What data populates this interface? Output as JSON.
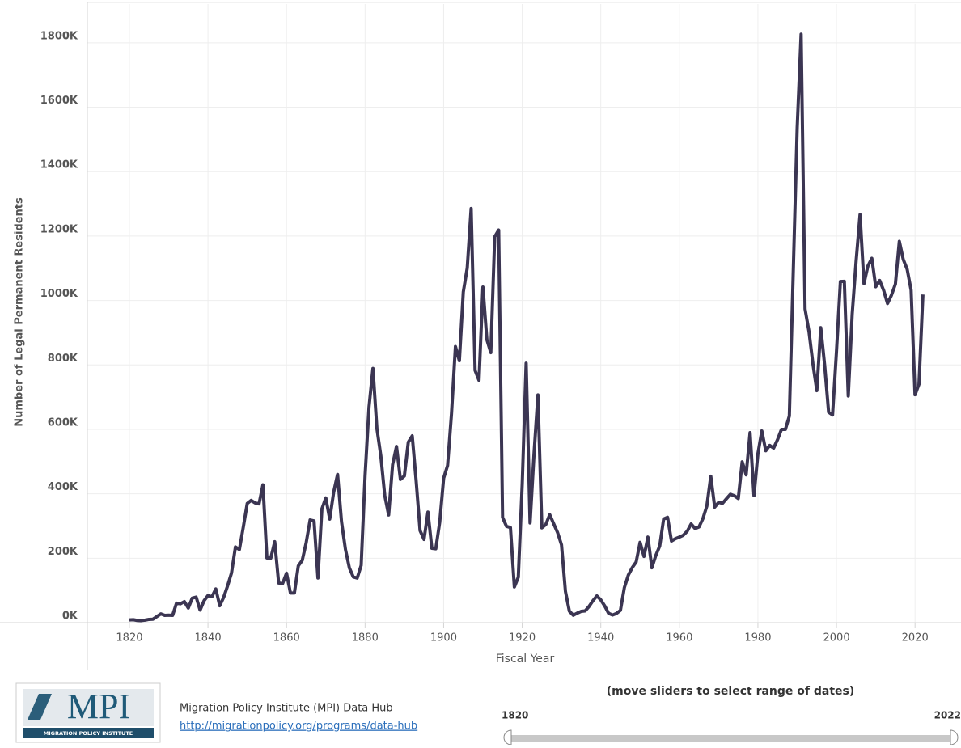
{
  "chart_data": {
    "type": "line",
    "y_label": "Number of Legal Permanent Residents",
    "x_label": "Fiscal Year",
    "color": "#3b3552",
    "grid": true,
    "xlim": [
      1809.3,
      2031.7
    ],
    "xticks": [
      1820,
      1840,
      1860,
      1880,
      1900,
      1920,
      1940,
      1960,
      1980,
      2000,
      2020
    ],
    "ylim": [
      0,
      1920000
    ],
    "yticks": [
      {
        "value": 0,
        "label": "0K"
      },
      {
        "value": 200000,
        "label": "200K"
      },
      {
        "value": 400000,
        "label": "400K"
      },
      {
        "value": 600000,
        "label": "600K"
      },
      {
        "value": 800000,
        "label": "800K"
      },
      {
        "value": 1000000,
        "label": "1000K"
      },
      {
        "value": 1200000,
        "label": "1200K"
      },
      {
        "value": 1400000,
        "label": "1400K"
      },
      {
        "value": 1600000,
        "label": "1600K"
      },
      {
        "value": 1800000,
        "label": "1800K"
      }
    ],
    "x": [
      1820,
      1821,
      1822,
      1823,
      1824,
      1825,
      1826,
      1827,
      1828,
      1829,
      1830,
      1831,
      1832,
      1833,
      1834,
      1835,
      1836,
      1837,
      1838,
      1839,
      1840,
      1841,
      1842,
      1843,
      1844,
      1845,
      1846,
      1847,
      1848,
      1849,
      1850,
      1851,
      1852,
      1853,
      1854,
      1855,
      1856,
      1857,
      1858,
      1859,
      1860,
      1861,
      1862,
      1863,
      1864,
      1865,
      1866,
      1867,
      1868,
      1869,
      1870,
      1871,
      1872,
      1873,
      1874,
      1875,
      1876,
      1877,
      1878,
      1879,
      1880,
      1881,
      1882,
      1883,
      1884,
      1885,
      1886,
      1887,
      1888,
      1889,
      1890,
      1891,
      1892,
      1893,
      1894,
      1895,
      1896,
      1897,
      1898,
      1899,
      1900,
      1901,
      1902,
      1903,
      1904,
      1905,
      1906,
      1907,
      1908,
      1909,
      1910,
      1911,
      1912,
      1913,
      1914,
      1915,
      1916,
      1917,
      1918,
      1919,
      1920,
      1921,
      1922,
      1923,
      1924,
      1925,
      1926,
      1927,
      1928,
      1929,
      1930,
      1931,
      1932,
      1933,
      1934,
      1935,
      1936,
      1937,
      1938,
      1939,
      1940,
      1941,
      1942,
      1943,
      1944,
      1945,
      1946,
      1947,
      1948,
      1949,
      1950,
      1951,
      1952,
      1953,
      1954,
      1955,
      1956,
      1957,
      1958,
      1959,
      1960,
      1961,
      1962,
      1963,
      1964,
      1965,
      1966,
      1967,
      1968,
      1969,
      1970,
      1971,
      1972,
      1973,
      1974,
      1975,
      1976,
      1977,
      1978,
      1979,
      1980,
      1981,
      1982,
      1983,
      1984,
      1985,
      1986,
      1987,
      1988,
      1989,
      1990,
      1991,
      1992,
      1993,
      1994,
      1995,
      1996,
      1997,
      1998,
      1999,
      2000,
      2001,
      2002,
      2003,
      2004,
      2005,
      2006,
      2007,
      2008,
      2009,
      2010,
      2011,
      2012,
      2013,
      2014,
      2015,
      2016,
      2017,
      2018,
      2019,
      2020,
      2021,
      2022
    ],
    "values": [
      8400,
      9100,
      6900,
      6400,
      7900,
      10200,
      10800,
      18900,
      27400,
      22500,
      23300,
      22600,
      60500,
      58600,
      65400,
      45400,
      76200,
      79300,
      38900,
      68100,
      84100,
      80300,
      104600,
      52500,
      78600,
      114400,
      154400,
      235000,
      227000,
      297000,
      370000,
      379500,
      371600,
      368600,
      427800,
      200900,
      200400,
      251300,
      123100,
      121300,
      153600,
      91900,
      92000,
      176300,
      193400,
      248100,
      318600,
      315700,
      138800,
      352800,
      387200,
      321400,
      404800,
      460000,
      313300,
      227500,
      170000,
      141900,
      138500,
      177800,
      457300,
      669400,
      789000,
      603300,
      518600,
      395300,
      334200,
      490100,
      547000,
      444400,
      455300,
      560300,
      579700,
      439700,
      285600,
      258500,
      343300,
      230800,
      229300,
      311700,
      448600,
      487900,
      648700,
      857000,
      812900,
      1026500,
      1100700,
      1285300,
      782900,
      751800,
      1041600,
      878600,
      838200,
      1197900,
      1218500,
      326700,
      298800,
      295400,
      110600,
      141100,
      430000,
      805200,
      309600,
      522900,
      706900,
      294300,
      304500,
      335200,
      307300,
      279700,
      241700,
      97100,
      35600,
      23100,
      29500,
      35000,
      36300,
      50200,
      68000,
      83000,
      70800,
      51800,
      28800,
      23700,
      28600,
      38100,
      108700,
      147300,
      170600,
      188300,
      249200,
      205700,
      265500,
      170400,
      208200,
      237800,
      321600,
      326900,
      253300,
      260700,
      265400,
      271300,
      283800,
      306300,
      292200,
      297000,
      323000,
      362000,
      454400,
      358600,
      373300,
      370500,
      384700,
      398500,
      393900,
      385400,
      499100,
      458800,
      589800,
      394200,
      524300,
      595000,
      533600,
      550100,
      541800,
      568100,
      600000,
      599900,
      641300,
      1090200,
      1535900,
      1826600,
      973400,
      903900,
      804000,
      720200,
      915600,
      797800,
      653200,
      644800,
      841000,
      1058900,
      1059400,
      703500,
      957900,
      1122300,
      1266100,
      1052400,
      1107100,
      1130800,
      1042600,
      1062000,
      1031600,
      990600,
      1016500,
      1051000,
      1183500,
      1127200,
      1096600,
      1031800,
      707400,
      740000,
      1018300
    ]
  },
  "footer": {
    "logo": "MPI",
    "logo_sub": "MIGRATION POLICY INSTITUTE",
    "source": "Migration Policy Institute (MPI) Data Hub",
    "link": "http://migrationpolicy.org/programs/data-hub",
    "slider_title": "(move sliders to select range of dates)",
    "slider_start": "1820",
    "slider_end": "2022"
  }
}
